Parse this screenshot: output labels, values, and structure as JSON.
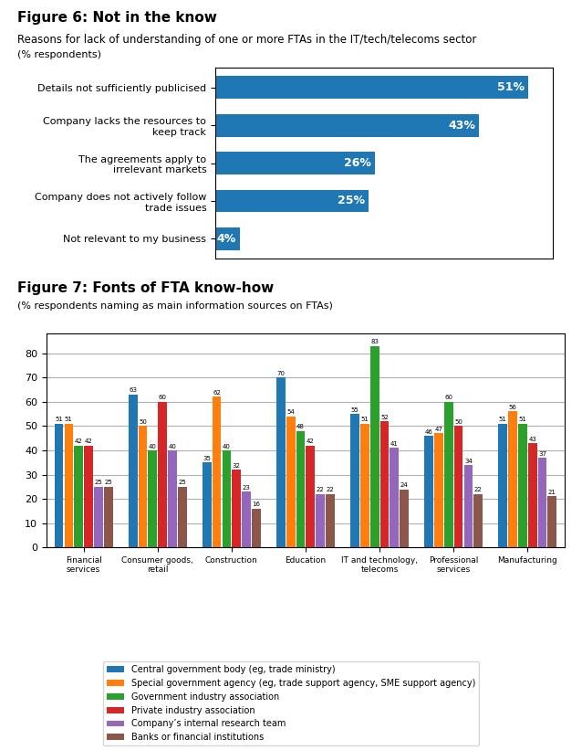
{
  "chart_data": [
    {
      "type": "bar",
      "orientation": "horizontal",
      "title": "Figure 6: Not in the know",
      "subtitle": "Reasons for lack of understanding of one or more FTAs in the IT/tech/telecoms sector",
      "annotations": [
        "(% respondents)"
      ],
      "categories": [
        "Details not sufficiently publicised",
        "Company lacks the resources to\nkeep track",
        "The agreements apply to\nirrelevant markets",
        "Company does not actively follow\ntrade issues",
        "Not relevant to my business"
      ],
      "values": [
        51,
        43,
        26,
        25,
        4
      ],
      "value_labels": [
        "51%",
        "43%",
        "26%",
        "25%",
        "4%"
      ],
      "data_labels": true,
      "xlim": [
        0,
        55
      ],
      "tick_labels": "y",
      "grid": false
    },
    {
      "type": "bar",
      "title": "Figure 7: Fonts of FTA know-how",
      "subtitle": "(% respondents naming as main information sources on FTAs)",
      "categories": [
        "Financial\nservices",
        "Consumer goods,\nretail",
        "Construction",
        "Education",
        "IT and technology,\ntelecoms",
        "Professional\nservices",
        "Manufacturing"
      ],
      "series": [
        {
          "name": "Central government body (eg, trade ministry)",
          "values": [
            51,
            63,
            35,
            70,
            55,
            46,
            51
          ]
        },
        {
          "name": "Special government agency (eg, trade support agency, SME support agency)",
          "values": [
            51,
            50,
            62,
            54,
            51,
            47,
            56
          ]
        },
        {
          "name": "Government industry association",
          "values": [
            42,
            40,
            40,
            48,
            83,
            60,
            51
          ]
        },
        {
          "name": "Private industry association",
          "values": [
            42,
            60,
            32,
            42,
            52,
            50,
            43
          ]
        },
        {
          "name": "Company’s internal research team",
          "values": [
            25,
            40,
            23,
            22,
            41,
            34,
            37
          ]
        },
        {
          "name": "Banks or financial institutions",
          "values": [
            25,
            25,
            16,
            22,
            24,
            22,
            21
          ]
        }
      ],
      "ylim": [
        0,
        88
      ],
      "yticks": [
        0,
        10,
        20,
        30,
        40,
        50,
        60,
        70,
        80
      ],
      "data_labels": true,
      "grid": true,
      "legend": "lower center"
    }
  ]
}
